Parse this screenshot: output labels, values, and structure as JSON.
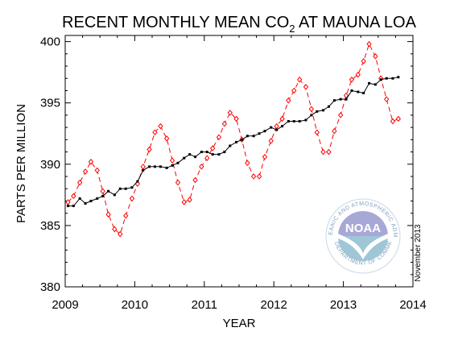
{
  "chart_data": {
    "type": "line",
    "title": "RECENT MONTHLY MEAN CO",
    "title_subscript": "2",
    "title_suffix": " AT MAUNA LOA",
    "xlabel": "YEAR",
    "ylabel": "PARTS PER MILLION",
    "xlim": [
      2009,
      2014
    ],
    "ylim": [
      380,
      400.5
    ],
    "xticks": [
      2009,
      2010,
      2011,
      2012,
      2013,
      2014
    ],
    "yticks": [
      380,
      385,
      390,
      395,
      400
    ],
    "grid": false,
    "series": [
      {
        "color": "#ff0000",
        "style": "dashed",
        "marker": "diamond",
        "x": [
          2009.04,
          2009.12,
          2009.21,
          2009.29,
          2009.37,
          2009.46,
          2009.54,
          2009.62,
          2009.71,
          2009.79,
          2009.87,
          2009.96,
          2010.04,
          2010.12,
          2010.21,
          2010.29,
          2010.37,
          2010.46,
          2010.54,
          2010.62,
          2010.71,
          2010.79,
          2010.87,
          2010.96,
          2011.04,
          2011.12,
          2011.21,
          2011.29,
          2011.37,
          2011.46,
          2011.54,
          2011.62,
          2011.71,
          2011.79,
          2011.87,
          2011.96,
          2012.04,
          2012.12,
          2012.21,
          2012.29,
          2012.37,
          2012.46,
          2012.54,
          2012.62,
          2012.71,
          2012.79,
          2012.87,
          2012.96,
          2013.04,
          2013.12,
          2013.21,
          2013.29,
          2013.37,
          2013.46,
          2013.54,
          2013.62,
          2013.71,
          2013.79
        ],
        "values": [
          386.9,
          387.4,
          388.5,
          389.4,
          390.2,
          389.5,
          387.8,
          385.9,
          384.7,
          384.3,
          385.8,
          387.2,
          388.4,
          389.8,
          391.2,
          392.6,
          393.1,
          392.1,
          390.3,
          388.5,
          386.9,
          387.1,
          388.7,
          389.8,
          390.5,
          391.3,
          392.2,
          393.3,
          394.2,
          393.7,
          392.0,
          390.1,
          389.0,
          389.0,
          390.6,
          391.9,
          393.1,
          393.7,
          395.2,
          396.0,
          396.9,
          396.3,
          394.5,
          392.6,
          391.0,
          391.0,
          392.7,
          394.0,
          395.6,
          396.9,
          397.3,
          398.4,
          399.8,
          398.8,
          397.0,
          395.3,
          393.5,
          393.7
        ]
      },
      {
        "color": "#000000",
        "style": "solid",
        "marker": "square",
        "x": [
          2009.04,
          2009.12,
          2009.21,
          2009.29,
          2009.37,
          2009.46,
          2009.54,
          2009.62,
          2009.71,
          2009.79,
          2009.87,
          2009.96,
          2010.04,
          2010.12,
          2010.21,
          2010.29,
          2010.37,
          2010.46,
          2010.54,
          2010.62,
          2010.71,
          2010.79,
          2010.87,
          2010.96,
          2011.04,
          2011.12,
          2011.21,
          2011.29,
          2011.37,
          2011.46,
          2011.54,
          2011.62,
          2011.71,
          2011.79,
          2011.87,
          2011.96,
          2012.04,
          2012.12,
          2012.21,
          2012.29,
          2012.37,
          2012.46,
          2012.54,
          2012.62,
          2012.71,
          2012.79,
          2012.87,
          2012.96,
          2013.04,
          2013.12,
          2013.21,
          2013.29,
          2013.37,
          2013.46,
          2013.54,
          2013.62,
          2013.71,
          2013.79
        ],
        "values": [
          386.6,
          386.6,
          387.2,
          386.8,
          387.0,
          387.2,
          387.4,
          387.8,
          387.5,
          388.0,
          388.0,
          388.1,
          388.6,
          389.5,
          389.8,
          389.8,
          389.8,
          389.7,
          389.9,
          390.1,
          390.5,
          390.8,
          390.6,
          391.0,
          391.0,
          390.8,
          390.8,
          391.0,
          391.5,
          391.8,
          392.0,
          392.3,
          392.3,
          392.5,
          392.7,
          393.0,
          392.8,
          393.1,
          393.5,
          393.5,
          393.5,
          393.6,
          394.0,
          394.3,
          394.4,
          394.7,
          395.2,
          395.3,
          395.3,
          396.0,
          395.9,
          395.8,
          396.6,
          396.5,
          396.9,
          397.0,
          397.0,
          397.1
        ]
      }
    ]
  },
  "logo": {
    "name": "NOAA",
    "ring_text": "NATIONAL OCEANIC AND ATMOSPHERIC ADMINISTRATION",
    "ring_text_bottom": "U.S. DEPARTMENT OF COMMERCE"
  },
  "date_note": "November 2013"
}
